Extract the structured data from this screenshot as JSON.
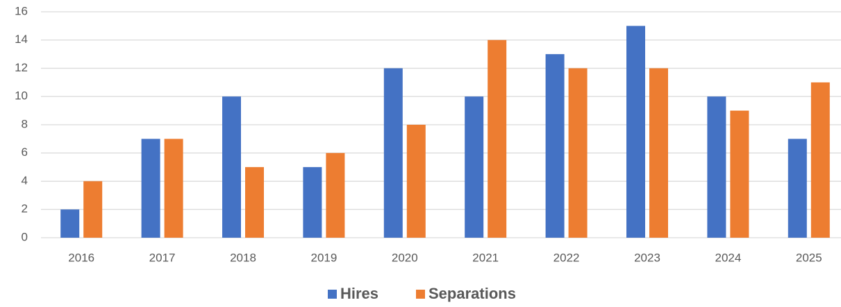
{
  "chart_data": {
    "type": "bar",
    "categories": [
      "2016",
      "2017",
      "2018",
      "2019",
      "2020",
      "2021",
      "2022",
      "2023",
      "2024",
      "2025"
    ],
    "series": [
      {
        "name": "Hires",
        "color": "#4472c4",
        "values": [
          2,
          7,
          10,
          5,
          12,
          10,
          13,
          15,
          10,
          7
        ]
      },
      {
        "name": "Separations",
        "color": "#ed7d31",
        "values": [
          4,
          7,
          5,
          6,
          8,
          14,
          12,
          12,
          9,
          11
        ]
      }
    ],
    "ylim": [
      0,
      16
    ],
    "yticks": [
      0,
      2,
      4,
      6,
      8,
      10,
      12,
      14,
      16
    ],
    "grid": true,
    "legend": "bottom"
  }
}
